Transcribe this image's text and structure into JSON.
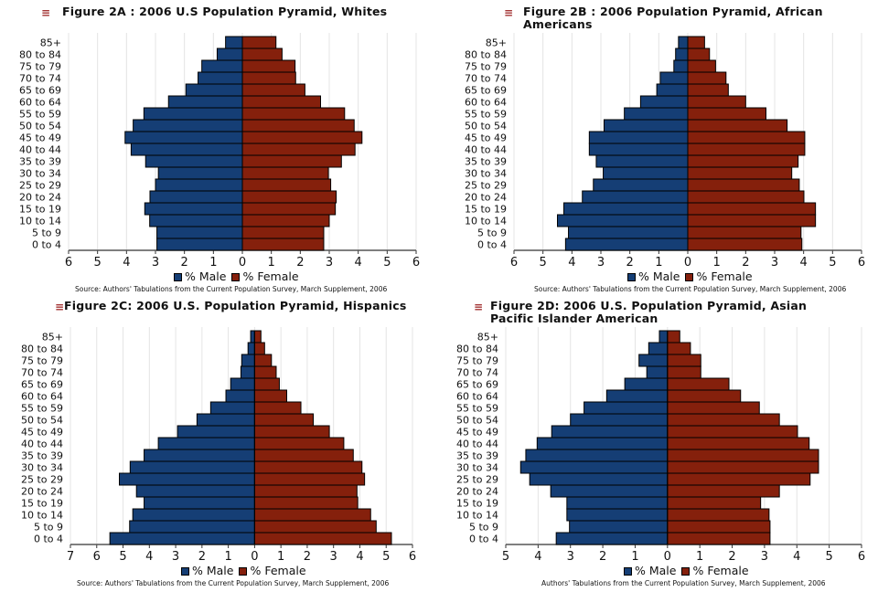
{
  "colors": {
    "male": "#153e75",
    "female": "#85200c",
    "grid": "#e4e4e4",
    "title_icon": "#a33333"
  },
  "chart_data": [
    {
      "type": "bar",
      "orientation": "horizontal-pyramid",
      "title": "Figure 2A : 2006 U.S Population Pyramid, Whites",
      "title_icon": "menu-lines-icon",
      "categories": [
        "0 to 4",
        "5 to 9",
        "10 to 14",
        "15 to 19",
        "20 to 24",
        "25 to 29",
        "30 to 34",
        "35 to 39",
        "40 to 44",
        "45 to 49",
        "50 to 54",
        "55 to 59",
        "60 to 64",
        "65 to 69",
        "70 to 74",
        "75 to 79",
        "80 to 84",
        "85+"
      ],
      "series": [
        {
          "name": "% Male",
          "values": [
            2.95,
            2.95,
            3.2,
            3.37,
            3.19,
            3.0,
            2.9,
            3.34,
            3.84,
            4.05,
            3.77,
            3.4,
            2.55,
            1.95,
            1.53,
            1.4,
            0.87,
            0.58
          ]
        },
        {
          "name": "% Female",
          "values": [
            2.81,
            2.81,
            3.0,
            3.21,
            3.24,
            3.05,
            2.97,
            3.42,
            3.89,
            4.13,
            3.86,
            3.53,
            2.7,
            2.16,
            1.84,
            1.82,
            1.37,
            1.16
          ]
        }
      ],
      "xlim_male": [
        0,
        6
      ],
      "xlim_female": [
        0,
        6
      ],
      "xticks": [
        "6",
        "5",
        "4",
        "3",
        "2",
        "1",
        "0",
        "1",
        "2",
        "3",
        "4",
        "5",
        "6"
      ],
      "grid": true,
      "legend": "bottom",
      "source": "Source: Authors' Tabulations from the Current Population Survey, March Supplement, 2006"
    },
    {
      "type": "bar",
      "orientation": "horizontal-pyramid",
      "title": "Figure 2B : 2006 Population Pyramid, African Americans",
      "title_icon": "menu-lines-icon",
      "categories": [
        "0 to 4",
        "5 to 9",
        "10 to 14",
        "15 to 19",
        "20 to 24",
        "25 to 29",
        "30 to 34",
        "35 to 39",
        "40 to 44",
        "45 to 49",
        "50 to 54",
        "55 to 59",
        "60 to 64",
        "65 to 69",
        "70 to 74",
        "75 to 79",
        "80 to 84",
        "85+"
      ],
      "series": [
        {
          "name": "% Male",
          "values": [
            4.22,
            4.12,
            4.5,
            4.28,
            3.64,
            3.26,
            2.92,
            3.16,
            3.4,
            3.4,
            2.89,
            2.19,
            1.63,
            1.07,
            0.95,
            0.48,
            0.42,
            0.32
          ]
        },
        {
          "name": "% Female",
          "values": [
            3.94,
            3.91,
            4.41,
            4.41,
            4.01,
            3.85,
            3.59,
            3.81,
            4.04,
            4.04,
            3.43,
            2.7,
            2.0,
            1.4,
            1.32,
            0.96,
            0.75,
            0.58
          ]
        }
      ],
      "xlim_male": [
        0,
        6
      ],
      "xlim_female": [
        0,
        6
      ],
      "xticks": [
        "6",
        "5",
        "4",
        "3",
        "2",
        "1",
        "0",
        "1",
        "2",
        "3",
        "4",
        "5",
        "6"
      ],
      "grid": true,
      "legend": "bottom",
      "source": "Source: Authors' Tabulations from the Current Population Survey, March Supplement, 2006"
    },
    {
      "type": "bar",
      "orientation": "horizontal-pyramid",
      "title": "Figure 2C: 2006 U.S. Population Pyramid, Hispanics",
      "title_icon": "menu-lines-icon",
      "categories": [
        "0 to 4",
        "5 to 9",
        "10 to 14",
        "15 to 19",
        "20 to 24",
        "25 to 29",
        "30 to 34",
        "35 to 39",
        "40 to 44",
        "45 to 49",
        "50 to 54",
        "55 to 59",
        "60 to 64",
        "65 to 69",
        "70 to 74",
        "75 to 79",
        "80 to 84",
        "85+"
      ],
      "series": [
        {
          "name": "% Male",
          "values": [
            5.5,
            4.75,
            4.63,
            4.2,
            4.49,
            5.14,
            4.73,
            4.2,
            3.66,
            2.93,
            2.19,
            1.67,
            1.09,
            0.91,
            0.52,
            0.49,
            0.25,
            0.15
          ]
        },
        {
          "name": "% Female",
          "values": [
            5.2,
            4.62,
            4.41,
            3.92,
            3.89,
            4.18,
            4.08,
            3.75,
            3.39,
            2.84,
            2.23,
            1.76,
            1.22,
            0.94,
            0.82,
            0.64,
            0.38,
            0.24
          ]
        }
      ],
      "xlim_male": [
        0,
        7
      ],
      "xlim_female": [
        0,
        6
      ],
      "xticks": [
        "7",
        "6",
        "5",
        "4",
        "3",
        "2",
        "1",
        "0",
        "1",
        "2",
        "3",
        "4",
        "5",
        "6"
      ],
      "grid": true,
      "legend": "bottom",
      "source": "Source: Authors' Tabulations from the Current Population Survey, March Supplement, 2006"
    },
    {
      "type": "bar",
      "orientation": "horizontal-pyramid",
      "title": "Figure 2D: 2006 U.S. Population Pyramid, Asian Pacific Islander American",
      "title_icon": "menu-lines-icon",
      "categories": [
        "0 to 4",
        "5 to 9",
        "10 to 14",
        "15 to 19",
        "20 to 24",
        "25 to 29",
        "30 to 34",
        "35 to 39",
        "40 to 44",
        "45 to 49",
        "50 to 54",
        "55 to 59",
        "60 to 64",
        "65 to 69",
        "70 to 74",
        "75 to 79",
        "80 to 84",
        "85+"
      ],
      "series": [
        {
          "name": "% Male",
          "values": [
            3.44,
            3.03,
            3.11,
            3.11,
            3.61,
            4.26,
            4.54,
            4.38,
            4.03,
            3.58,
            3.0,
            2.58,
            1.88,
            1.32,
            0.64,
            0.88,
            0.58,
            0.25
          ]
        },
        {
          "name": "% Female",
          "values": [
            3.17,
            3.17,
            3.14,
            2.88,
            3.46,
            4.41,
            4.67,
            4.67,
            4.38,
            4.02,
            3.46,
            2.84,
            2.26,
            1.9,
            1.03,
            1.03,
            0.71,
            0.38
          ]
        }
      ],
      "xlim_male": [
        0,
        5
      ],
      "xlim_female": [
        0,
        6
      ],
      "xticks": [
        "5",
        "4",
        "3",
        "2",
        "1",
        "0",
        "1",
        "2",
        "3",
        "4",
        "5",
        "6"
      ],
      "grid": true,
      "legend": "bottom",
      "source": "Authors' Tabulations from the Current Population Survey, March Supplement, 2006"
    }
  ]
}
